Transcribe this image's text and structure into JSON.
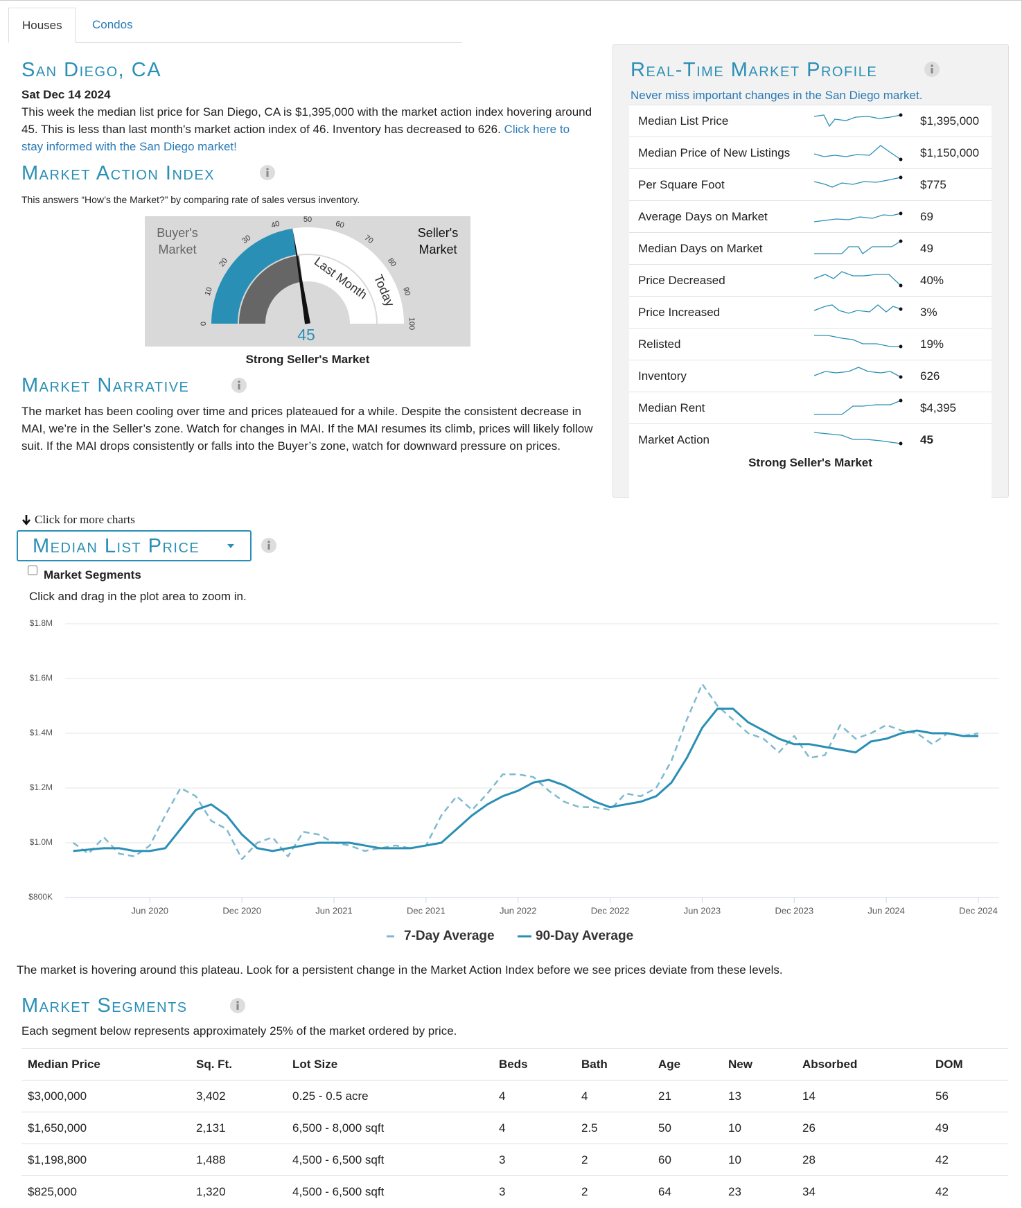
{
  "tabs": [
    "Houses",
    "Condos"
  ],
  "header": {
    "title": "San Diego, CA",
    "date": "Sat Dec 14 2024",
    "summary": "This week the median list price for San Diego, CA is $1,395,000 with the market action index hovering around 45. This is less than last month's market action index of 46. Inventory has decreased to 626.",
    "summary_link": "Click here to stay informed with the San Diego market!"
  },
  "market_action_index": {
    "title": "Market Action Index",
    "subtitle": "This answers “How’s the Market?” by comparing rate of sales versus inventory.",
    "gauge": {
      "ticks": [
        0,
        10,
        20,
        30,
        40,
        50,
        60,
        70,
        80,
        90,
        100
      ],
      "value": 45,
      "last_month_value": 46,
      "buyers_label": "Buyer's Market",
      "sellers_label": "Seller's Market",
      "last_month_label": "Last Month",
      "today_label": "Today"
    },
    "status": "Strong Seller's Market"
  },
  "market_narrative": {
    "title": "Market Narrative",
    "text": "The market has been cooling over time and prices plateaued for a while. Despite the consistent decrease in MAI, we’re in the Seller’s zone. Watch for changes in MAI. If the MAI resumes its climb, prices will likely follow suit. If the MAI drops consistently or falls into the Buyer’s zone, watch for downward pressure on prices."
  },
  "profile": {
    "title": "Real-Time Market Profile",
    "subtitle": "Never miss important changes in the San Diego market.",
    "rows": [
      {
        "label": "Median List Price",
        "value": "$1,395,000"
      },
      {
        "label": "Median Price of New Listings",
        "value": "$1,150,000"
      },
      {
        "label": "Per Square Foot",
        "value": "$775"
      },
      {
        "label": "Average Days on Market",
        "value": "69"
      },
      {
        "label": "Median Days on Market",
        "value": "49"
      },
      {
        "label": "Price Decreased",
        "value": "40%"
      },
      {
        "label": "Price Increased",
        "value": "3%"
      },
      {
        "label": "Relisted",
        "value": "19%"
      },
      {
        "label": "Inventory",
        "value": "626"
      },
      {
        "label": "Median Rent",
        "value": "$4,395"
      },
      {
        "label": "Market Action",
        "value": "45"
      }
    ],
    "status": "Strong Seller's Market"
  },
  "chart_controls": {
    "more_charts": "Click for more charts",
    "selector": "Median List Price",
    "segments_checkbox": "Market Segments",
    "hint": "Click and drag in the plot area to zoom in."
  },
  "chart_data": {
    "type": "line",
    "x": [
      "2020-01",
      "2020-02",
      "2020-03",
      "2020-04",
      "2020-05",
      "2020-06",
      "2020-07",
      "2020-08",
      "2020-09",
      "2020-10",
      "2020-11",
      "2020-12",
      "2021-01",
      "2021-02",
      "2021-03",
      "2021-04",
      "2021-05",
      "2021-06",
      "2021-07",
      "2021-08",
      "2021-09",
      "2021-10",
      "2021-11",
      "2021-12",
      "2022-01",
      "2022-02",
      "2022-03",
      "2022-04",
      "2022-05",
      "2022-06",
      "2022-07",
      "2022-08",
      "2022-09",
      "2022-10",
      "2022-11",
      "2022-12",
      "2023-01",
      "2023-02",
      "2023-03",
      "2023-04",
      "2023-05",
      "2023-06",
      "2023-07",
      "2023-08",
      "2023-09",
      "2023-10",
      "2023-11",
      "2023-12",
      "2024-01",
      "2024-02",
      "2024-03",
      "2024-04",
      "2024-05",
      "2024-06",
      "2024-07",
      "2024-08",
      "2024-09",
      "2024-10",
      "2024-11",
      "2024-12"
    ],
    "series": [
      {
        "name": "7-Day Average",
        "color": "#7fb9cf",
        "style": "dashed",
        "values": [
          1000000,
          960000,
          1020000,
          960000,
          950000,
          990000,
          1100000,
          1200000,
          1170000,
          1080000,
          1050000,
          940000,
          1000000,
          1020000,
          950000,
          1040000,
          1030000,
          1000000,
          990000,
          970000,
          980000,
          990000,
          980000,
          990000,
          1100000,
          1170000,
          1120000,
          1180000,
          1250000,
          1250000,
          1240000,
          1190000,
          1150000,
          1130000,
          1130000,
          1120000,
          1180000,
          1170000,
          1200000,
          1300000,
          1450000,
          1580000,
          1500000,
          1450000,
          1400000,
          1380000,
          1330000,
          1390000,
          1310000,
          1320000,
          1430000,
          1380000,
          1400000,
          1430000,
          1410000,
          1400000,
          1360000,
          1400000,
          1390000,
          1400000
        ]
      },
      {
        "name": "90-Day Average",
        "color": "#2a8fb5",
        "style": "solid",
        "values": [
          970000,
          975000,
          980000,
          980000,
          970000,
          970000,
          980000,
          1050000,
          1120000,
          1140000,
          1100000,
          1030000,
          980000,
          970000,
          980000,
          990000,
          1000000,
          1000000,
          1000000,
          990000,
          980000,
          980000,
          980000,
          990000,
          1000000,
          1050000,
          1100000,
          1140000,
          1170000,
          1190000,
          1220000,
          1230000,
          1210000,
          1180000,
          1150000,
          1130000,
          1140000,
          1150000,
          1170000,
          1220000,
          1310000,
          1420000,
          1490000,
          1490000,
          1440000,
          1410000,
          1380000,
          1360000,
          1360000,
          1350000,
          1340000,
          1330000,
          1370000,
          1380000,
          1400000,
          1410000,
          1400000,
          1400000,
          1390000,
          1390000
        ]
      }
    ],
    "xlim": [
      "2020-01",
      "2024-12"
    ],
    "xticks": [
      {
        "value": "2020-06",
        "label": "Jun 2020"
      },
      {
        "value": "2020-12",
        "label": "Dec 2020"
      },
      {
        "value": "2021-06",
        "label": "Jun 2021"
      },
      {
        "value": "2021-12",
        "label": "Dec 2021"
      },
      {
        "value": "2022-06",
        "label": "Jun 2022"
      },
      {
        "value": "2022-12",
        "label": "Dec 2022"
      },
      {
        "value": "2023-06",
        "label": "Jun 2023"
      },
      {
        "value": "2023-12",
        "label": "Dec 2023"
      },
      {
        "value": "2024-06",
        "label": "Jun 2024"
      },
      {
        "value": "2024-12",
        "label": "Dec 2024"
      }
    ],
    "ylim": [
      800000,
      1800000
    ],
    "yticks": [
      {
        "value": 800000,
        "label": "$800K"
      },
      {
        "value": 1000000,
        "label": "$1.0M"
      },
      {
        "value": 1200000,
        "label": "$1.2M"
      },
      {
        "value": 1400000,
        "label": "$1.4M"
      },
      {
        "value": 1600000,
        "label": "$1.6M"
      },
      {
        "value": 1800000,
        "label": "$1.8M"
      }
    ],
    "grid": true,
    "legend": "bottom"
  },
  "chart_note": "The market is hovering around this plateau. Look for a persistent change in the Market Action Index before we see prices deviate from these levels.",
  "segments": {
    "title": "Market Segments",
    "subtitle": "Each segment below represents approximately 25% of the market ordered by price.",
    "table": {
      "header": [
        "Median Price",
        "Sq. Ft.",
        "Lot Size",
        "Beds",
        "Bath",
        "Age",
        "New",
        "Absorbed",
        "DOM"
      ],
      "rows": [
        [
          "$3,000,000",
          "3,402",
          "0.25 - 0.5 acre",
          "4",
          "4",
          "21",
          "13",
          "14",
          "56"
        ],
        [
          "$1,650,000",
          "2,131",
          "6,500 - 8,000 sqft",
          "4",
          "2.5",
          "50",
          "10",
          "26",
          "49"
        ],
        [
          "$1,198,800",
          "1,488",
          "4,500 - 6,500 sqft",
          "3",
          "2",
          "60",
          "10",
          "28",
          "42"
        ],
        [
          "$825,000",
          "1,320",
          "4,500 - 6,500 sqft",
          "3",
          "2",
          "64",
          "23",
          "34",
          "42"
        ]
      ]
    }
  }
}
